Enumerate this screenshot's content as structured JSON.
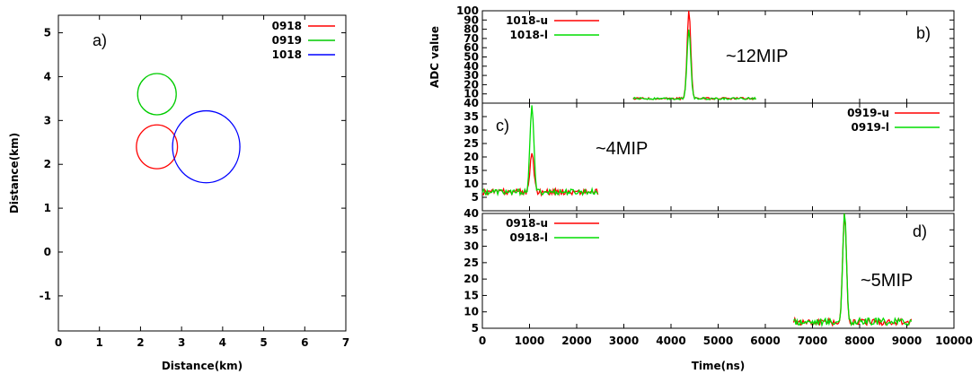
{
  "chart_data": [
    {
      "type": "scatter",
      "subtype": "circles",
      "panel_label": "a)",
      "xlabel": "Distance(km)",
      "ylabel": "Distance(km)",
      "xlim": [
        0,
        7
      ],
      "ylim": [
        -1.8,
        5.4
      ],
      "xticks": [
        0,
        1,
        2,
        3,
        4,
        5,
        6,
        7
      ],
      "yticks": [
        -1,
        0,
        1,
        2,
        3,
        4,
        5
      ],
      "legend_position": "top-right",
      "series": [
        {
          "name": "0918",
          "color": "#ff0000",
          "cx": 2.4,
          "cy": 2.4,
          "r": 0.5
        },
        {
          "name": "0919",
          "color": "#00cc00",
          "cx": 2.4,
          "cy": 3.6,
          "r": 0.47
        },
        {
          "name": "1018",
          "color": "#0000ff",
          "cx": 3.6,
          "cy": 2.4,
          "r": 0.82
        }
      ]
    },
    {
      "type": "line",
      "panel_label": "b)",
      "annotation": "~12MIP",
      "ylabel": "ADC value",
      "xlim": [
        0,
        10000
      ],
      "ylim": [
        0,
        100
      ],
      "yticks": [
        10,
        20,
        30,
        40,
        50,
        60,
        70,
        80,
        90,
        100
      ],
      "legend_position": "top-left",
      "baseline": 5,
      "series": [
        {
          "name": "1018-u",
          "color": "#ff0000",
          "x_range": [
            3200,
            5800
          ],
          "peak_x": 4380,
          "peak_y": 100
        },
        {
          "name": "1018-l",
          "color": "#00dd00",
          "x_range": [
            3200,
            5800
          ],
          "peak_x": 4380,
          "peak_y": 80
        }
      ]
    },
    {
      "type": "line",
      "panel_label": "c)",
      "annotation": "~4MIP",
      "xlim": [
        0,
        10000
      ],
      "ylim": [
        0,
        40
      ],
      "yticks": [
        5,
        10,
        15,
        20,
        25,
        30,
        35,
        40
      ],
      "legend_position": "top-right",
      "baseline": 7,
      "series": [
        {
          "name": "0919-u",
          "color": "#ff0000",
          "x_range": [
            0,
            2450
          ],
          "peak_x": 1050,
          "peak_y": 22
        },
        {
          "name": "0919-l",
          "color": "#00dd00",
          "x_range": [
            0,
            2450
          ],
          "peak_x": 1050,
          "peak_y": 40
        }
      ]
    },
    {
      "type": "line",
      "panel_label": "d)",
      "annotation": "~5MIP",
      "xlabel": "Time(ns)",
      "xlim": [
        0,
        10000
      ],
      "ylim": [
        5,
        40
      ],
      "xticks": [
        0,
        1000,
        2000,
        3000,
        4000,
        5000,
        6000,
        7000,
        8000,
        9000,
        10000
      ],
      "yticks": [
        5,
        10,
        15,
        20,
        25,
        30,
        35,
        40
      ],
      "legend_position": "top-left",
      "baseline": 7,
      "series": [
        {
          "name": "0918-u",
          "color": "#ff0000",
          "x_range": [
            6600,
            9100
          ],
          "peak_x": 7680,
          "peak_y": 40
        },
        {
          "name": "0918-l",
          "color": "#00dd00",
          "x_range": [
            6600,
            9100
          ],
          "peak_x": 7680,
          "peak_y": 40
        }
      ]
    }
  ]
}
